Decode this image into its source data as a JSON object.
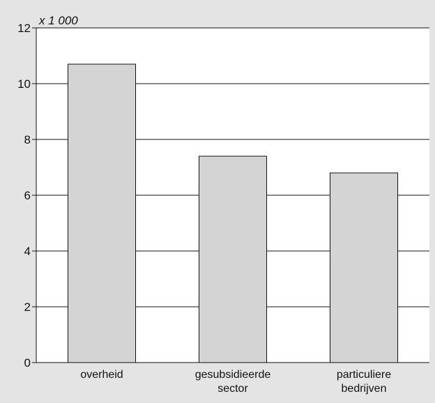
{
  "chart_data": {
    "type": "bar",
    "unit_label": "x 1 000",
    "categories": [
      "overheid",
      "gesubsidieerde sector",
      "particuliere bedrijven"
    ],
    "category_lines": [
      [
        "overheid"
      ],
      [
        "gesubsidieerde",
        "sector"
      ],
      [
        "particuliere",
        "bedrijven"
      ]
    ],
    "values": [
      10.7,
      7.4,
      6.8
    ],
    "ylim": [
      0,
      12
    ],
    "yticks": [
      0,
      2,
      4,
      6,
      8,
      10,
      12
    ],
    "title": "",
    "xlabel": "",
    "ylabel": "",
    "grid": true,
    "colors": {
      "background": "#e4e4e4",
      "plot_area": "#ffffff",
      "bar_fill": "#d4d4d4",
      "bar_stroke": "#111111",
      "grid": "#111111"
    }
  }
}
